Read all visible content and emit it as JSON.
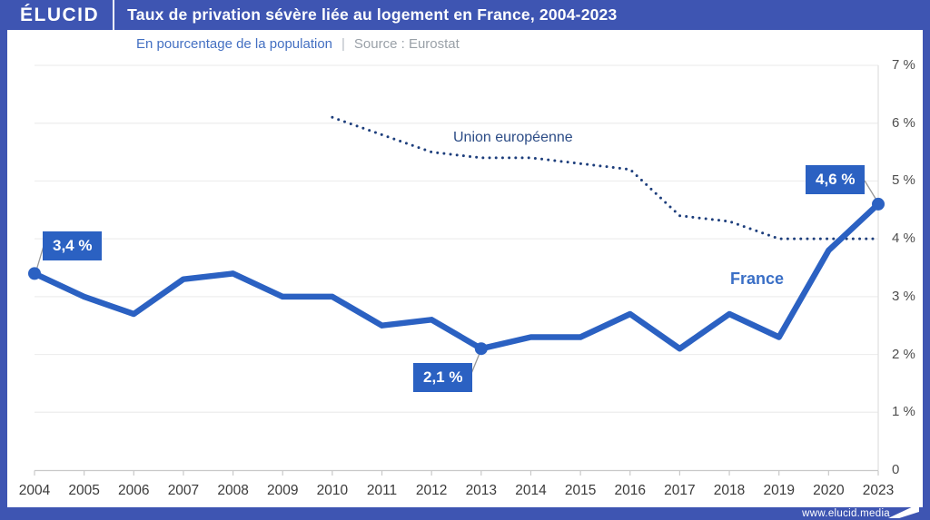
{
  "header": {
    "logo": "ÉLUCID",
    "title": "Taux de privation sévère liée au logement en France, 2004-2023"
  },
  "subtitle": {
    "text": "En pourcentage de la population",
    "separator": "|",
    "source": "Source : Eurostat"
  },
  "footer": {
    "url": "www.elucid.media"
  },
  "colors": {
    "frame_blue": "#3e55b2",
    "france_blue": "#2b61c2",
    "eu_navy": "#1d3e7c",
    "annotation_bg": "#2b61c2",
    "grid_line": "#ededed",
    "plot_border": "#e0e0e0",
    "axis_line": "#c9c9c9",
    "leader_line": "#979797",
    "x_label": "#3b3b3b",
    "y_label": "#4e4e4e",
    "subtitle_blue": "#4470c2",
    "source_gray": "#9aa1a8"
  },
  "chart_data": {
    "type": "line",
    "title": "Taux de privation sévère liée au logement en France, 2004-2023",
    "subtitle": "En pourcentage de la population",
    "source": "Source : Eurostat",
    "categories": [
      "2004",
      "2005",
      "2006",
      "2007",
      "2008",
      "2009",
      "2010",
      "2011",
      "2012",
      "2013",
      "2014",
      "2015",
      "2016",
      "2017",
      "2018",
      "2019",
      "2020",
      "2023"
    ],
    "series": [
      {
        "name": "France",
        "style": "solid",
        "color": "#2b61c2",
        "values": [
          3.4,
          3.0,
          2.7,
          3.3,
          3.4,
          3.0,
          3.0,
          2.5,
          2.6,
          2.1,
          2.3,
          2.3,
          2.7,
          2.1,
          2.7,
          2.3,
          3.8,
          4.6
        ]
      },
      {
        "name": "Union européenne",
        "style": "dotted",
        "color": "#1d3e7c",
        "values": [
          null,
          null,
          null,
          null,
          null,
          null,
          6.1,
          5.8,
          5.5,
          5.4,
          5.4,
          5.3,
          5.2,
          4.4,
          4.3,
          4.0,
          4.0,
          4.0
        ]
      }
    ],
    "xlabel": "",
    "ylabel": "En pourcentage de la population",
    "ylim": [
      0,
      7
    ],
    "yticks": [
      "7 %",
      "6 %",
      "5 %",
      "4 %",
      "3 %",
      "2 %",
      "1 %",
      "0"
    ],
    "grid": "horizontal",
    "legend": "inline-labels",
    "annotations": [
      {
        "category": "2004",
        "series": "France",
        "value": 3.4,
        "label": "3,4 %"
      },
      {
        "category": "2013",
        "series": "France",
        "value": 2.1,
        "label": "2,1 %"
      },
      {
        "category": "2023",
        "series": "France",
        "value": 4.6,
        "label": "4,6 %"
      }
    ]
  }
}
